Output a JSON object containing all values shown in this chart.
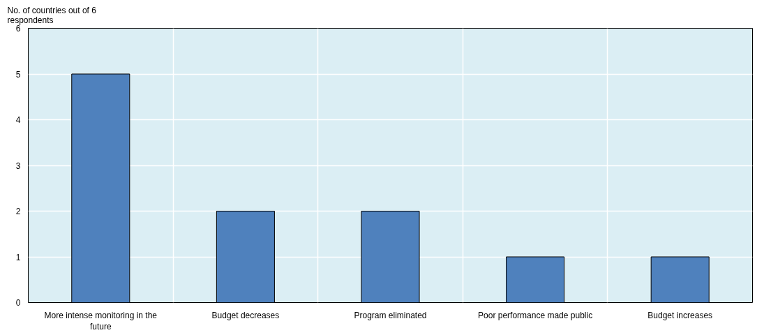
{
  "chart_data": {
    "type": "bar",
    "ylabel": "No. of countries out of 6 respondents",
    "categories": [
      "More intense monitoring in the future",
      "Budget decreases",
      "Program eliminated",
      "Poor performance made public",
      "Budget increases"
    ],
    "values": [
      5,
      2,
      2,
      1,
      1
    ],
    "color": "#4f81bd",
    "ylim": [
      0,
      6
    ],
    "yticks": [
      0,
      1,
      2,
      3,
      4,
      5,
      6
    ],
    "grid": true
  }
}
